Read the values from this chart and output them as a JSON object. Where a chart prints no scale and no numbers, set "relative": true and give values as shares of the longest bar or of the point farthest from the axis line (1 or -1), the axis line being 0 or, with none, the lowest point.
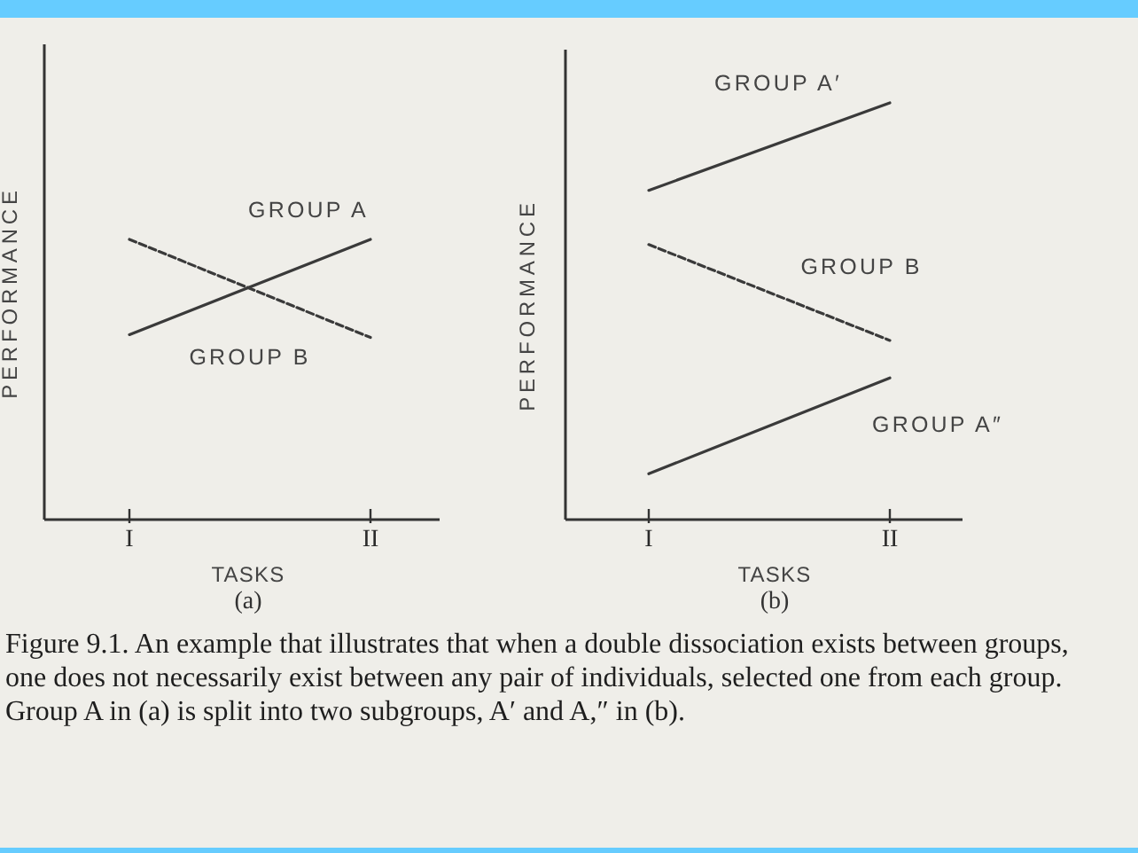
{
  "chart_data": [
    {
      "type": "line",
      "relative": true,
      "xlabel": "TASKS",
      "ylabel": "PERFORMANCE",
      "categories": [
        "I",
        "II"
      ],
      "line_style": "solid",
      "annotations": [
        "(a)"
      ],
      "series": [
        {
          "name": "GROUP A",
          "color": "#3a3a3a",
          "values": [
            0.66,
            1
          ]
        },
        {
          "name": "GROUP B",
          "color": "#3a3a3a",
          "values": [
            1,
            0.65
          ],
          "line_style": "dashed"
        }
      ]
    },
    {
      "type": "line",
      "relative": true,
      "xlabel": "TASKS",
      "ylabel": "PERFORMANCE",
      "categories": [
        "I",
        "II"
      ],
      "line_style": "solid",
      "annotations": [
        "(b)",
        "Figure 9.1. An example that illustrates that when a double dissociation exists between groups, one does not necessarily exist between any pair of individuals, selected one from each group. Group A in (a) is split into two subgroups, A′ and A,″ in (b)."
      ],
      "series": [
        {
          "name": "GROUP A′",
          "color": "#3a3a3a",
          "values": [
            0.79,
            1
          ]
        },
        {
          "name": "GROUP B",
          "color": "#3a3a3a",
          "values": [
            0.66,
            0.43
          ],
          "line_style": "dashed"
        },
        {
          "name": "GROUP A″",
          "color": "#3a3a3a",
          "values": [
            0.11,
            0.34
          ]
        }
      ]
    }
  ]
}
